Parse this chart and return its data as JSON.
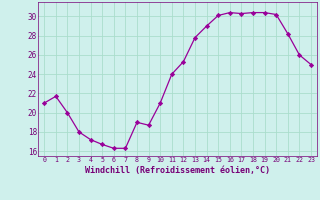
{
  "x": [
    0,
    1,
    2,
    3,
    4,
    5,
    6,
    7,
    8,
    9,
    10,
    11,
    12,
    13,
    14,
    15,
    16,
    17,
    18,
    19,
    20,
    21,
    22,
    23
  ],
  "y": [
    21.0,
    21.7,
    20.0,
    18.0,
    17.2,
    16.7,
    16.3,
    16.3,
    19.0,
    18.7,
    21.0,
    24.0,
    25.3,
    27.8,
    29.0,
    30.1,
    30.4,
    30.3,
    30.4,
    30.4,
    30.2,
    28.2,
    26.0,
    25.0
  ],
  "xlabel": "Windchill (Refroidissement éolien,°C)",
  "ylim": [
    15.5,
    31.5
  ],
  "yticks": [
    16,
    18,
    20,
    22,
    24,
    26,
    28,
    30
  ],
  "line_color": "#990099",
  "marker": "D",
  "marker_size": 2.2,
  "bg_color": "#cff0ec",
  "grid_color": "#aaddcc",
  "font_color": "#770077"
}
